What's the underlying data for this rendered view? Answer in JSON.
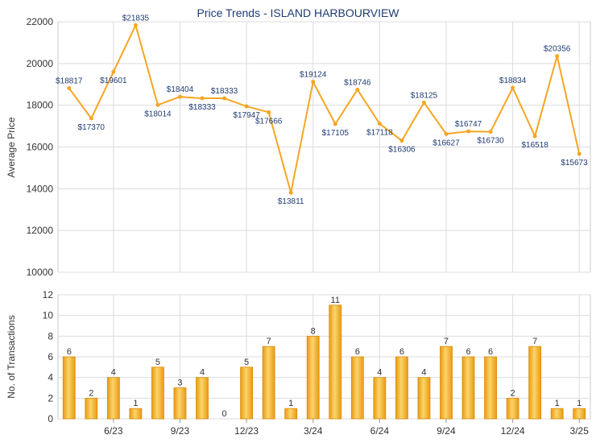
{
  "colors": {
    "line": "#f5a623",
    "bar_light": "#fbd56b",
    "bar_dark": "#e99a12",
    "grid": "#dcdcdc",
    "title": "#1f3b73",
    "label": "#1f3b73",
    "axis_text": "#333333"
  },
  "chart_data": [
    {
      "type": "line",
      "title": "Price Trends - ISLAND HARBOURVIEW",
      "ylabel": "Average Price",
      "ylim": [
        10000,
        22000
      ],
      "yticks": [
        10000,
        12000,
        14000,
        16000,
        18000,
        20000,
        22000
      ],
      "grid": true,
      "series": [
        {
          "values": [
            18817,
            17370,
            19601,
            21835,
            18014,
            18404,
            18333,
            18333,
            17947,
            17666,
            13811,
            19124,
            17105,
            18746,
            17118,
            16306,
            18125,
            16627,
            16747,
            16730,
            18834,
            16518,
            20356,
            15673
          ],
          "labels": [
            "$18817",
            "$17370",
            "$19601",
            "$21835",
            "$18014",
            "$18404",
            "$18333",
            "$18333",
            "$17947",
            "$17666",
            "$13811",
            "$19124",
            "$17105",
            "$18746",
            "$17118",
            "$16306",
            "$18125",
            "$16627",
            "$16747",
            "$16730",
            "$18834",
            "$16518",
            "$20356",
            "$15673"
          ]
        }
      ]
    },
    {
      "type": "bar",
      "ylabel": "No. of Transactions",
      "ylim": [
        0,
        12
      ],
      "yticks": [
        0,
        2,
        4,
        6,
        8,
        10,
        12
      ],
      "grid": true,
      "xtick_labels": [
        "6/23",
        "9/23",
        "12/23",
        "3/24",
        "6/24",
        "9/24",
        "12/24",
        "3/25"
      ],
      "values": [
        6,
        2,
        4,
        1,
        5,
        3,
        4,
        0,
        5,
        7,
        1,
        8,
        11,
        6,
        4,
        6,
        4,
        7,
        6,
        6,
        2,
        7,
        1,
        1
      ]
    }
  ]
}
